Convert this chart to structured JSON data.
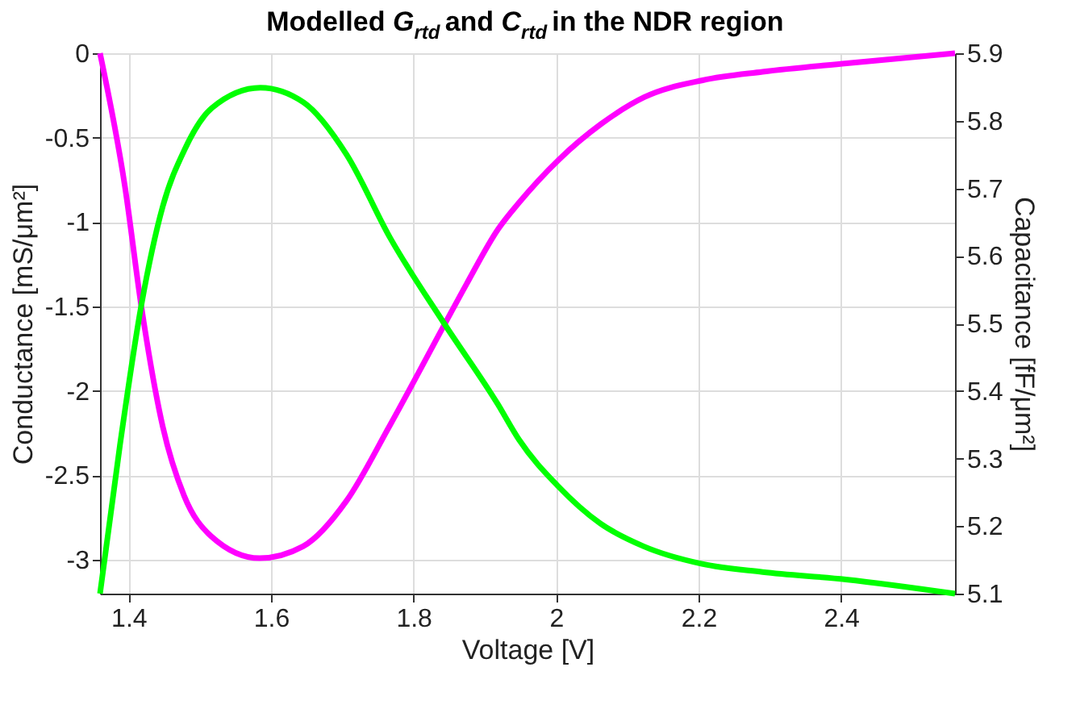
{
  "chart_data": {
    "type": "line",
    "title": "Modelled G$_{rtd}$ and C$_{rtd}$ in the NDR region",
    "xlabel": "Voltage [V]",
    "ylabel": "Conductance [mS/μm²]",
    "y2label": "Capacitance [fF/μm²]",
    "xlim": [
      1.36,
      2.56
    ],
    "xticks": [
      1.4,
      1.6,
      1.8,
      2,
      2.2,
      2.4
    ],
    "ylim": [
      -3.2,
      0
    ],
    "yticks": [
      -3,
      -2.5,
      -2,
      -1.5,
      -1,
      -0.5,
      0
    ],
    "y2lim": [
      5.1,
      5.9
    ],
    "y2ticks": [
      5.1,
      5.2,
      5.3,
      5.4,
      5.5,
      5.6,
      5.7,
      5.8,
      5.9
    ],
    "grid": true,
    "line_style": "solid",
    "marker": "none",
    "series": [
      {
        "color": "#ff00ff",
        "x": [
          1.36,
          1.395,
          1.418,
          1.448,
          1.478,
          1.516,
          1.584,
          1.645,
          1.706,
          1.766,
          1.843,
          1.874,
          1.919,
          1.949,
          2.004,
          2.063,
          2.124,
          2.206,
          2.29,
          2.408,
          2.56
        ],
        "values": [
          0,
          -0.79,
          -1.5,
          -2.21,
          -2.62,
          -2.86,
          -2.99,
          -2.92,
          -2.65,
          -2.21,
          -1.61,
          -1.37,
          -1.04,
          -0.88,
          -0.63,
          -0.42,
          -0.26,
          -0.16,
          -0.11,
          -0.06,
          0
        ]
      },
      {
        "color": "#00ff00",
        "axis": "y2",
        "x": [
          1.36,
          1.388,
          1.418,
          1.448,
          1.479,
          1.517,
          1.585,
          1.646,
          1.706,
          1.767,
          1.843,
          1.918,
          1.948,
          2.003,
          2.062,
          2.123,
          2.205,
          2.29,
          2.407,
          2.56
        ],
        "values": [
          5.1,
          5.32,
          5.527,
          5.673,
          5.758,
          5.819,
          5.849,
          5.827,
          5.75,
          5.627,
          5.5,
          5.381,
          5.328,
          5.259,
          5.204,
          5.17,
          5.144,
          5.132,
          5.121,
          5.1
        ]
      }
    ]
  }
}
